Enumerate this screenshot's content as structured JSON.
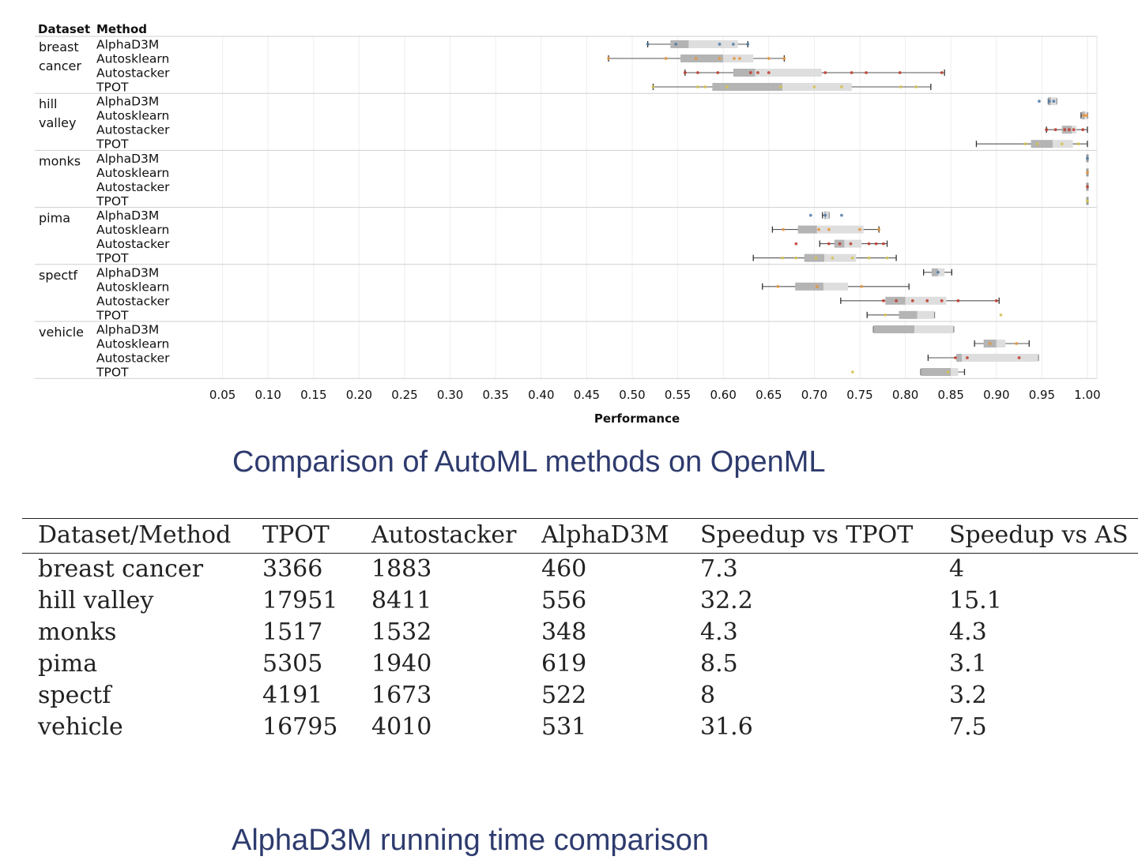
{
  "chart_data": {
    "type": "boxplot",
    "header": {
      "dataset": "Dataset",
      "method": "Method"
    },
    "xlabel": "Performance",
    "xlim": [
      0,
      1.0
    ],
    "xticks": [
      "0.05",
      "0.10",
      "0.15",
      "0.20",
      "0.25",
      "0.30",
      "0.35",
      "0.40",
      "0.45",
      "0.50",
      "0.55",
      "0.60",
      "0.65",
      "0.70",
      "0.75",
      "0.80",
      "0.85",
      "0.90",
      "0.95",
      "1.00"
    ],
    "method_colors": {
      "AlphaD3M": "#4e79a7",
      "Autosklearn": "#e8943a",
      "Autostacker": "#c0392b",
      "TPOT": "#d4c24e"
    },
    "groups": [
      {
        "dataset": [
          "breast",
          "cancer"
        ],
        "rows": [
          {
            "method": "AlphaD3M",
            "min": 0.517,
            "q1": 0.542,
            "median": 0.562,
            "q3": 0.616,
            "max": 0.627,
            "points": [
              0.517,
              0.548,
              0.596,
              0.611,
              0.627
            ]
          },
          {
            "method": "Autosklearn",
            "min": 0.474,
            "q1": 0.553,
            "median": 0.6,
            "q3": 0.633,
            "max": 0.667,
            "points": [
              0.474,
              0.537,
              0.57,
              0.596,
              0.612,
              0.618,
              0.65,
              0.667
            ]
          },
          {
            "method": "Autostacker",
            "min": 0.558,
            "q1": 0.611,
            "median": 0.635,
            "q3": 0.708,
            "max": 0.843,
            "points": [
              0.558,
              0.572,
              0.594,
              0.63,
              0.638,
              0.65,
              0.712,
              0.741,
              0.757,
              0.794,
              0.84
            ]
          },
          {
            "method": "TPOT",
            "min": 0.523,
            "q1": 0.588,
            "median": 0.665,
            "q3": 0.741,
            "max": 0.828,
            "points": [
              0.523,
              0.572,
              0.58,
              0.604,
              0.663,
              0.7,
              0.73,
              0.795,
              0.812
            ]
          }
        ]
      },
      {
        "dataset": [
          "hill",
          "valley"
        ],
        "rows": [
          {
            "method": "AlphaD3M",
            "min": 0.957,
            "q1": 0.957,
            "median": 0.96,
            "q3": 0.966,
            "max": 0.966,
            "points": [
              0.947,
              0.958,
              0.963
            ]
          },
          {
            "method": "Autosklearn",
            "min": 0.993,
            "q1": 0.994,
            "median": 0.997,
            "q3": 1.0,
            "max": 1.0,
            "points": [
              0.996,
              0.999
            ]
          },
          {
            "method": "Autostacker",
            "min": 0.955,
            "q1": 0.972,
            "median": 0.983,
            "q3": 0.988,
            "max": 1.0,
            "points": [
              0.955,
              0.965,
              0.975,
              0.98,
              0.985,
              0.995
            ]
          },
          {
            "method": "TPOT",
            "min": 0.878,
            "q1": 0.938,
            "median": 0.962,
            "q3": 0.984,
            "max": 1.0,
            "points": [
              0.932,
              0.945,
              0.972,
              0.99
            ]
          }
        ]
      },
      {
        "dataset": [
          "monks"
        ],
        "rows": [
          {
            "method": "AlphaD3M",
            "min": 1.0,
            "q1": 1.0,
            "median": 1.0,
            "q3": 1.0,
            "max": 1.0,
            "points": [
              1.0
            ]
          },
          {
            "method": "Autosklearn",
            "min": 1.0,
            "q1": 1.0,
            "median": 1.0,
            "q3": 1.0,
            "max": 1.0,
            "points": [
              1.0
            ]
          },
          {
            "method": "Autostacker",
            "min": 1.0,
            "q1": 1.0,
            "median": 1.0,
            "q3": 1.0,
            "max": 1.0,
            "points": [
              1.0
            ]
          },
          {
            "method": "TPOT",
            "min": 1.0,
            "q1": 1.0,
            "median": 1.0,
            "q3": 1.0,
            "max": 1.0,
            "points": [
              1.0
            ]
          }
        ]
      },
      {
        "dataset": [
          "pima"
        ],
        "rows": [
          {
            "method": "AlphaD3M",
            "min": 0.709,
            "q1": 0.711,
            "median": 0.713,
            "q3": 0.716,
            "max": 0.716,
            "points": [
              0.696,
              0.712,
              0.73
            ]
          },
          {
            "method": "Autosklearn",
            "min": 0.654,
            "q1": 0.682,
            "median": 0.703,
            "q3": 0.754,
            "max": 0.771,
            "points": [
              0.666,
              0.705,
              0.716,
              0.75,
              0.771
            ]
          },
          {
            "method": "Autostacker",
            "min": 0.706,
            "q1": 0.722,
            "median": 0.733,
            "q3": 0.752,
            "max": 0.78,
            "points": [
              0.68,
              0.716,
              0.728,
              0.74,
              0.76,
              0.768,
              0.776
            ]
          },
          {
            "method": "TPOT",
            "min": 0.633,
            "q1": 0.689,
            "median": 0.711,
            "q3": 0.746,
            "max": 0.79,
            "points": [
              0.665,
              0.68,
              0.702,
              0.72,
              0.742,
              0.76,
              0.78
            ]
          }
        ]
      },
      {
        "dataset": [
          "spectf"
        ],
        "rows": [
          {
            "method": "AlphaD3M",
            "min": 0.82,
            "q1": 0.829,
            "median": 0.836,
            "q3": 0.843,
            "max": 0.851,
            "points": [
              0.836
            ]
          },
          {
            "method": "Autosklearn",
            "min": 0.643,
            "q1": 0.679,
            "median": 0.71,
            "q3": 0.737,
            "max": 0.804,
            "points": [
              0.66,
              0.703,
              0.752
            ]
          },
          {
            "method": "Autostacker",
            "min": 0.729,
            "q1": 0.778,
            "median": 0.8,
            "q3": 0.845,
            "max": 0.903,
            "points": [
              0.776,
              0.79,
              0.808,
              0.824,
              0.84,
              0.858,
              0.9
            ]
          },
          {
            "method": "TPOT",
            "min": 0.758,
            "q1": 0.793,
            "median": 0.813,
            "q3": 0.832,
            "max": 0.832,
            "points": [
              0.778,
              0.905
            ]
          }
        ]
      },
      {
        "dataset": [
          "vehicle"
        ],
        "rows": [
          {
            "method": "AlphaD3M",
            "min": 0.765,
            "q1": 0.765,
            "median": 0.81,
            "q3": 0.853,
            "max": 0.853,
            "points": []
          },
          {
            "method": "Autosklearn",
            "min": 0.876,
            "q1": 0.886,
            "median": 0.9,
            "q3": 0.91,
            "max": 0.936,
            "points": [
              0.893,
              0.922
            ]
          },
          {
            "method": "Autostacker",
            "min": 0.825,
            "q1": 0.856,
            "median": 0.862,
            "q3": 0.946,
            "max": 0.946,
            "points": [
              0.855,
              0.868,
              0.925
            ]
          },
          {
            "method": "TPOT",
            "min": 0.817,
            "q1": 0.817,
            "median": 0.85,
            "q3": 0.858,
            "max": 0.865,
            "points": [
              0.742,
              0.847
            ]
          }
        ]
      }
    ]
  },
  "captions": {
    "chart": "Comparison of AutoML methods on OpenML",
    "table": "AlphaD3M running time comparison"
  },
  "table": {
    "headers": [
      "Dataset/Method",
      "TPOT",
      "Autostacker",
      "AlphaD3M",
      "Speedup vs TPOT",
      "Speedup vs AS"
    ],
    "rows": [
      [
        "breast cancer",
        "3366",
        "1883",
        "460",
        "7.3",
        "4"
      ],
      [
        "hill valley",
        "17951",
        "8411",
        "556",
        "32.2",
        "15.1"
      ],
      [
        "monks",
        "1517",
        "1532",
        "348",
        "4.3",
        "4.3"
      ],
      [
        "pima",
        "5305",
        "1940",
        "619",
        "8.5",
        "3.1"
      ],
      [
        "spectf",
        "4191",
        "1673",
        "522",
        "8",
        "3.2"
      ],
      [
        "vehicle",
        "16795",
        "4010",
        "531",
        "31.6",
        "7.5"
      ]
    ]
  }
}
